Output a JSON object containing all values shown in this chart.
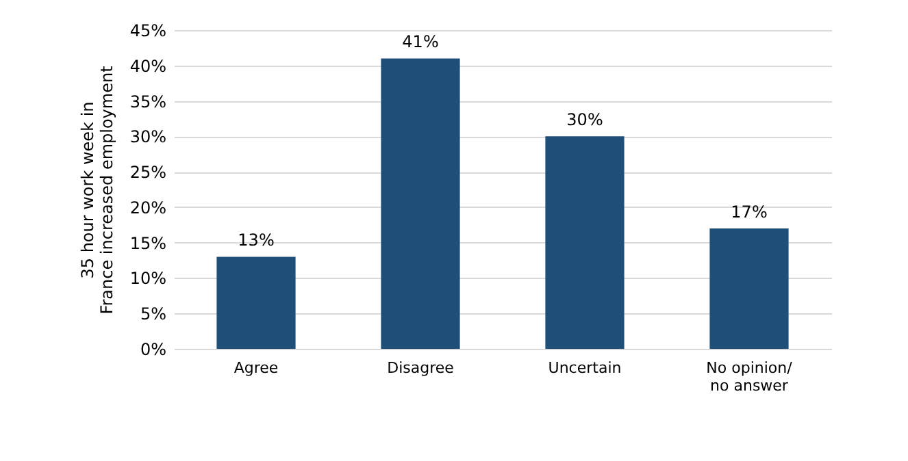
{
  "chart_data": {
    "type": "bar",
    "ylabel": "35 hour work week in France increased employment",
    "categories": [
      "Agree",
      "Disagree",
      "Uncertain",
      "No opinion/ no answer"
    ],
    "values": [
      13,
      41,
      30,
      17
    ],
    "value_labels": [
      "13%",
      "41%",
      "30%",
      "17%"
    ],
    "color": "#1f4e79",
    "ylim": [
      0,
      45
    ],
    "yticks": [
      {
        "value": 0,
        "label": "0%"
      },
      {
        "value": 5,
        "label": "5%"
      },
      {
        "value": 10,
        "label": "10%"
      },
      {
        "value": 15,
        "label": "15%"
      },
      {
        "value": 20,
        "label": "20%"
      },
      {
        "value": 25,
        "label": "25%"
      },
      {
        "value": 30,
        "label": "30%"
      },
      {
        "value": 35,
        "label": "35%"
      },
      {
        "value": 40,
        "label": "40%"
      },
      {
        "value": 45,
        "label": "45%"
      }
    ],
    "grid": "y"
  }
}
